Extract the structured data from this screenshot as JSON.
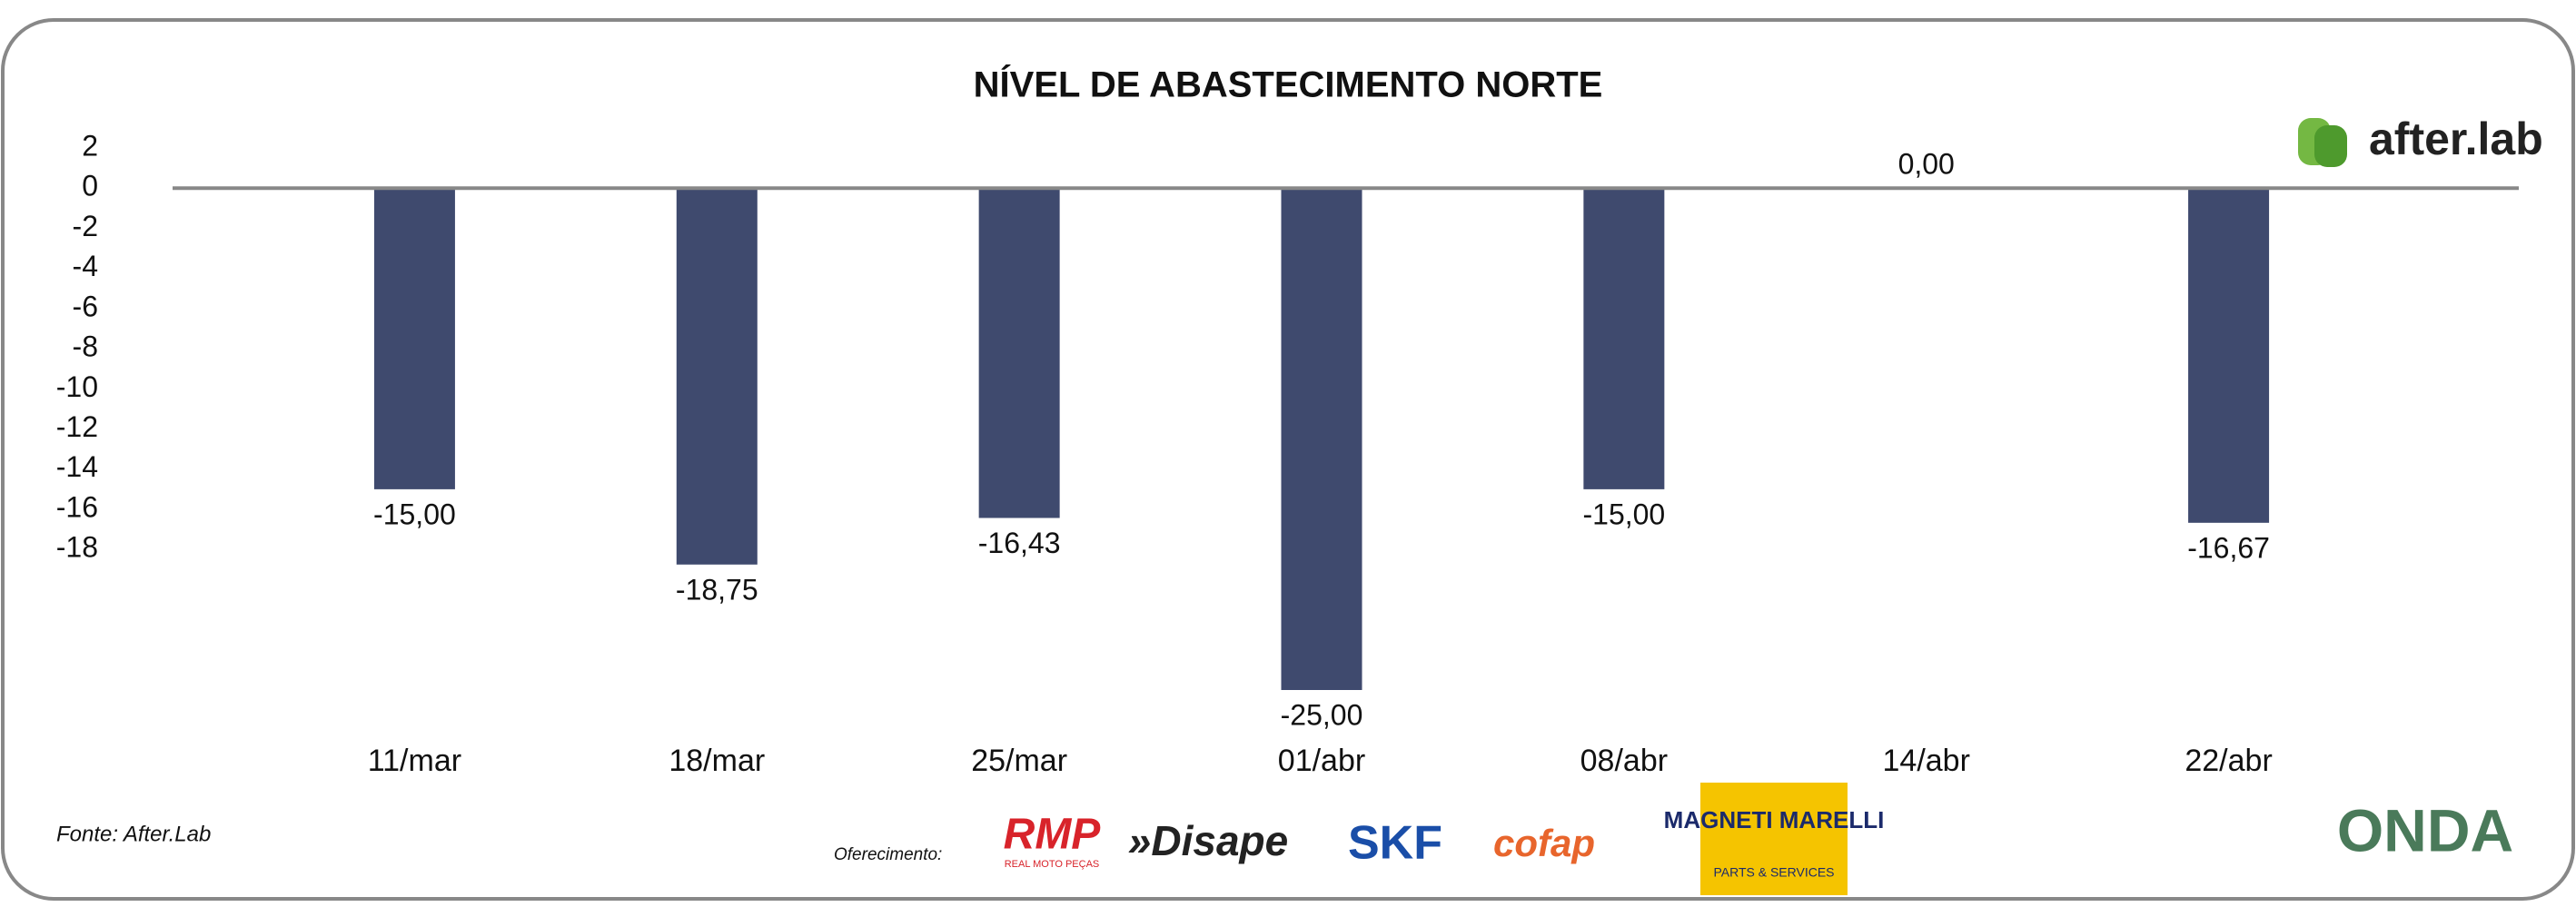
{
  "chart_data": {
    "type": "bar",
    "title": "NÍVEL DE ABASTECIMENTO NORTE",
    "categories": [
      "11/mar",
      "18/mar",
      "25/mar",
      "01/abr",
      "08/abr",
      "14/abr",
      "22/abr"
    ],
    "values": [
      -15,
      -18.75,
      -16.43,
      -25,
      -15,
      0,
      -16.67
    ],
    "value_labels": [
      "-15,00",
      "-18,75",
      "-16,43",
      "-25,00",
      "-15,00",
      "0,00",
      "-16,67"
    ],
    "color": "#3f4a6e",
    "ylim": [
      -25,
      2
    ],
    "yticks": [
      2,
      0,
      -2,
      -4,
      -6,
      -8,
      -10,
      -12,
      -14,
      -16,
      -18
    ],
    "grid": false
  },
  "source": "Fonte: After.Lab",
  "brand": "after.lab",
  "sponsors_label": "Oferecimento:",
  "sponsors": [
    "RMP",
    "REAL MOTO PEÇAS",
    "»Disape",
    "SKF",
    "cofap",
    "MAGNETI MARELLI",
    "PARTS & SERVICES"
  ],
  "footer_logo": "ONDA"
}
